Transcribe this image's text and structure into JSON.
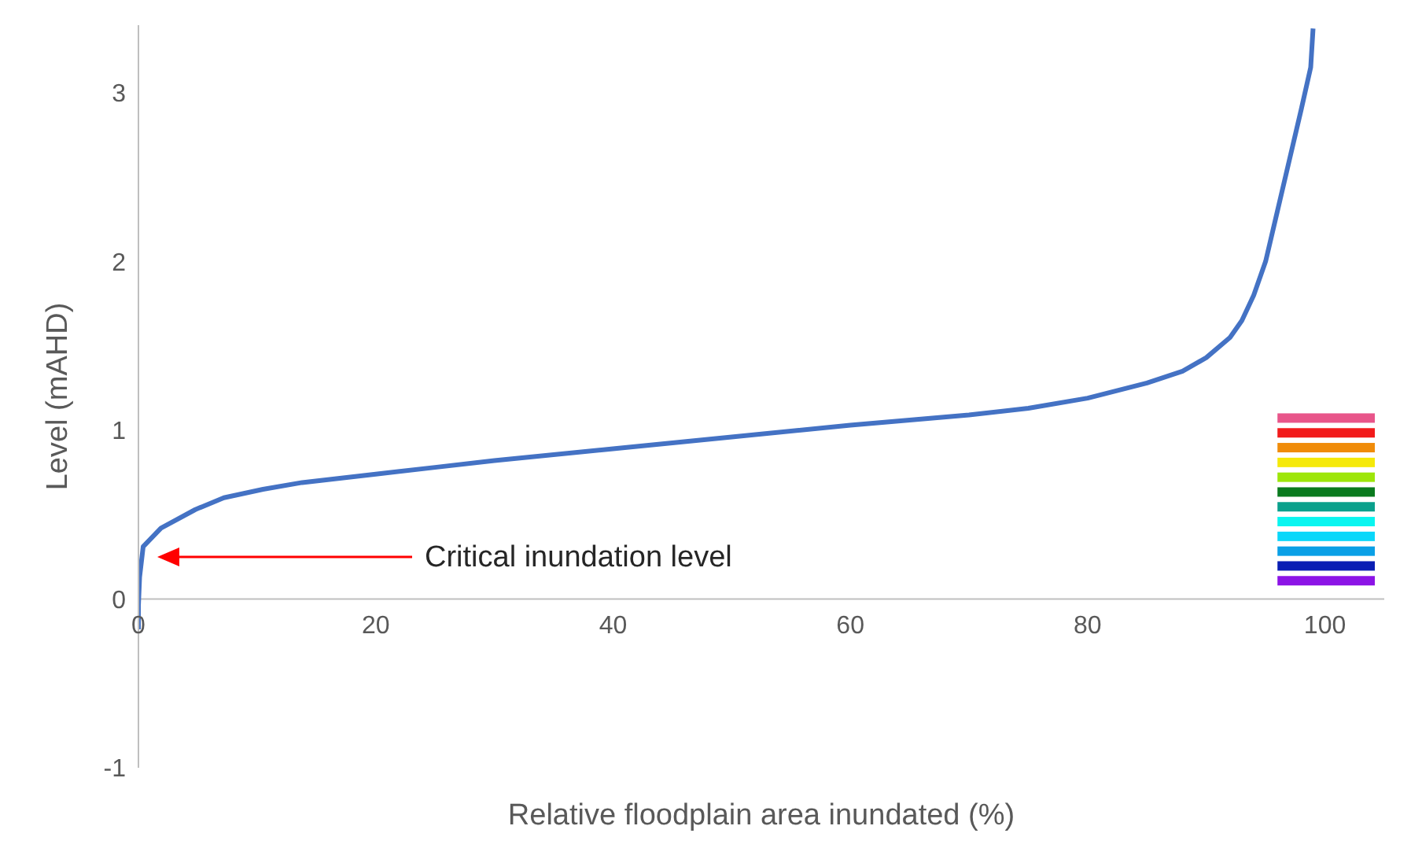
{
  "chart_data": {
    "type": "line",
    "xlabel": "Relative floodplain area inundated (%)",
    "ylabel": "Level (mAHD)",
    "annotations": [
      "Critical inundation level"
    ],
    "series": [
      {
        "color": "#4472c4",
        "x": [
          0,
          0,
          0.1,
          0.4,
          1.9,
          4.8,
          7.2,
          10.5,
          13.8,
          20,
          25,
          30,
          40,
          50,
          60,
          70,
          75,
          80,
          85,
          88,
          90,
          92,
          93,
          94,
          95,
          96,
          97,
          98,
          98.8,
          99
        ],
        "values": [
          -0.18,
          -0.04,
          0.13,
          0.31,
          0.42,
          0.53,
          0.6,
          0.65,
          0.69,
          0.74,
          0.78,
          0.82,
          0.89,
          0.96,
          1.03,
          1.09,
          1.13,
          1.19,
          1.28,
          1.35,
          1.43,
          1.55,
          1.65,
          1.8,
          2.0,
          2.3,
          2.6,
          2.9,
          3.15,
          3.38
        ]
      }
    ],
    "xlim": [
      0,
      105
    ],
    "xticks": [
      0,
      20,
      40,
      60,
      80,
      100
    ],
    "ylim": [
      -1,
      3.4
    ],
    "yticks": [
      -1,
      0,
      1,
      2,
      3
    ],
    "grid": false,
    "legend": false,
    "marker": "none",
    "line_style": "solid"
  }
}
